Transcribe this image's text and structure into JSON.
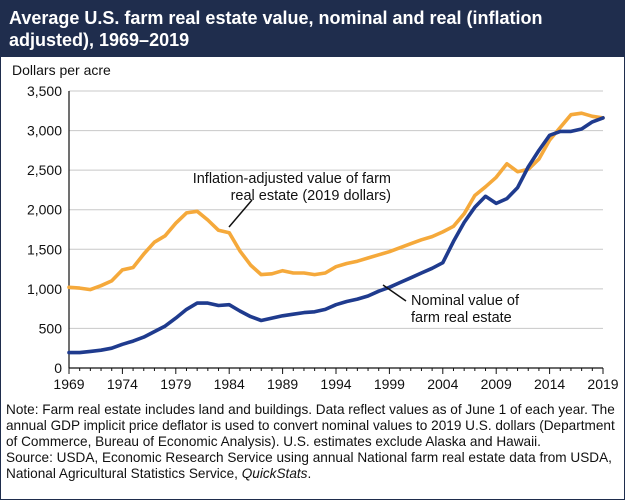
{
  "title": "Average U.S. farm real estate value, nominal and real (inflation adjusted), 1969–2019",
  "chart_data": {
    "type": "line",
    "ylabel": "Dollars per acre",
    "xlabel": "",
    "xlim": [
      1969,
      2019
    ],
    "ylim": [
      0,
      3500
    ],
    "x_ticks": [
      1969,
      1974,
      1979,
      1984,
      1989,
      1994,
      1999,
      2004,
      2009,
      2014,
      2019
    ],
    "y_ticks": [
      0,
      500,
      1000,
      1500,
      2000,
      2500,
      3000,
      3500
    ],
    "y_tick_labels": [
      "0",
      "500",
      "1,000",
      "1,500",
      "2,000",
      "2,500",
      "3,000",
      "3,500"
    ],
    "grid": true,
    "legend": "none (direct labels)",
    "x": [
      1969,
      1970,
      1971,
      1972,
      1973,
      1974,
      1975,
      1976,
      1977,
      1978,
      1979,
      1980,
      1981,
      1982,
      1983,
      1984,
      1985,
      1986,
      1987,
      1988,
      1989,
      1990,
      1991,
      1992,
      1993,
      1994,
      1995,
      1996,
      1997,
      1998,
      1999,
      2000,
      2001,
      2002,
      2003,
      2004,
      2005,
      2006,
      2007,
      2008,
      2009,
      2010,
      2011,
      2012,
      2013,
      2014,
      2015,
      2016,
      2017,
      2018,
      2019
    ],
    "series": [
      {
        "name": "Inflation-adjusted value of farm real estate (2019 dollars)",
        "color": "#f5a93b",
        "values": [
          1020,
          1010,
          990,
          1040,
          1100,
          1240,
          1270,
          1440,
          1590,
          1670,
          1830,
          1960,
          1980,
          1870,
          1740,
          1710,
          1480,
          1300,
          1180,
          1190,
          1230,
          1200,
          1200,
          1180,
          1200,
          1280,
          1320,
          1350,
          1390,
          1430,
          1470,
          1520,
          1570,
          1620,
          1660,
          1720,
          1790,
          1950,
          2180,
          2290,
          2410,
          2580,
          2480,
          2510,
          2640,
          2880,
          3040,
          3200,
          3220,
          3180,
          3160
        ]
      },
      {
        "name": "Nominal value of farm real estate",
        "color": "#1f3b8e",
        "values": [
          195,
          195,
          210,
          225,
          250,
          300,
          340,
          390,
          460,
          530,
          630,
          740,
          820,
          820,
          790,
          800,
          720,
          650,
          600,
          630,
          660,
          680,
          700,
          710,
          740,
          800,
          840,
          870,
          910,
          970,
          1020,
          1080,
          1140,
          1200,
          1260,
          1330,
          1600,
          1840,
          2030,
          2170,
          2080,
          2140,
          2280,
          2540,
          2750,
          2940,
          2990,
          2990,
          3020,
          3110,
          3160
        ]
      }
    ],
    "annotations": [
      {
        "lines": [
          "Inflation-adjusted value of farm",
          "real estate (2019 dollars)"
        ]
      },
      {
        "lines": [
          "Nominal value of",
          "farm real estate"
        ]
      }
    ]
  },
  "notes": [
    "Note: Farm real estate includes land and buildings. Data reflect values as of June 1 of each year. The annual GDP implicit price deflator is used to convert nominal values to 2019 U.S. dollars (Department of Commerce, Bureau of Economic Analysis). U.S. estimates exclude Alaska and Hawaii."
  ],
  "source_prefix": "Source: USDA, Economic Research Service using annual National farm real estate data from USDA, National Agricultural Statistics Service, ",
  "source_italic": "QuickStats",
  "source_suffix": "."
}
